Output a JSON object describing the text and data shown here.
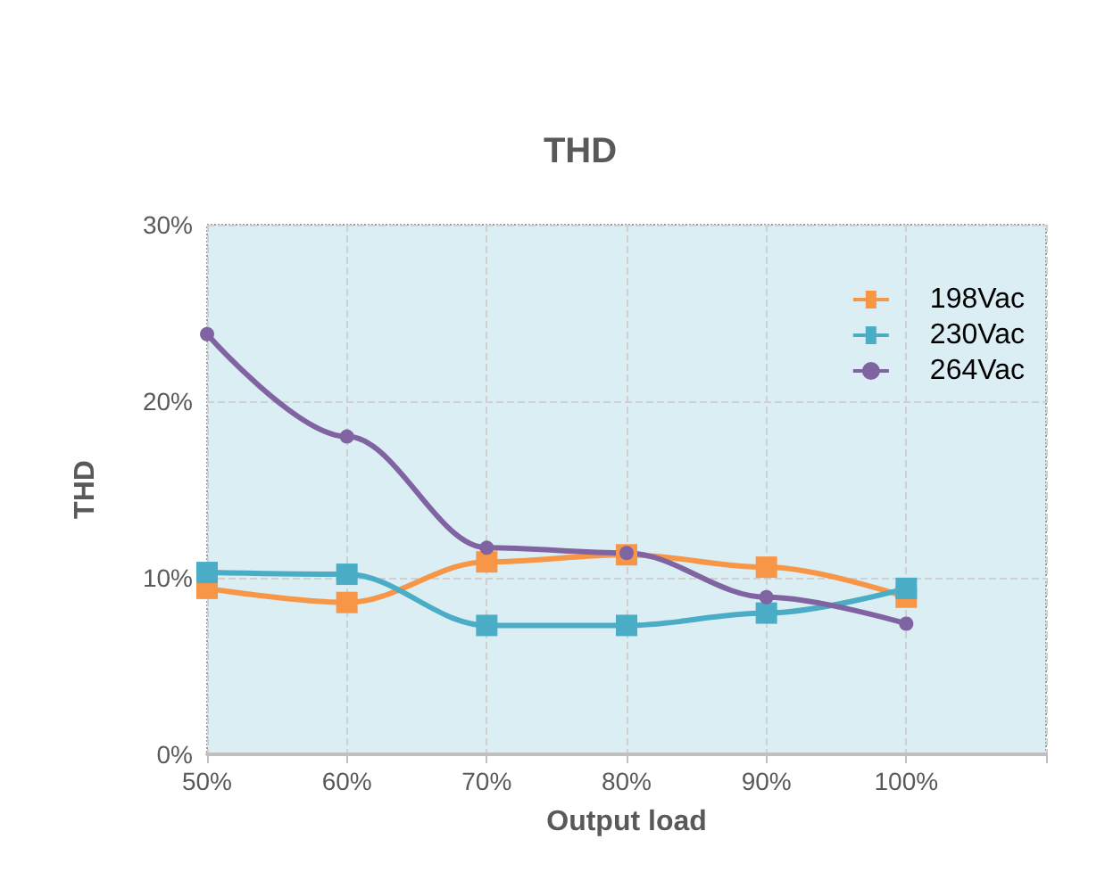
{
  "chart_data": {
    "type": "line",
    "title": "THD",
    "xlabel": "Output load",
    "ylabel": "THD",
    "x": [
      50,
      60,
      70,
      80,
      90,
      100
    ],
    "xlim": [
      50,
      110
    ],
    "xticks": [
      {
        "value": 50,
        "label": "50%"
      },
      {
        "value": 60,
        "label": "60%"
      },
      {
        "value": 70,
        "label": "70%"
      },
      {
        "value": 80,
        "label": "80%"
      },
      {
        "value": 90,
        "label": "90%"
      },
      {
        "value": 100,
        "label": "100%"
      },
      {
        "value": 110,
        "label": null
      }
    ],
    "ylim": [
      0,
      30
    ],
    "yticks": [
      {
        "value": 0,
        "label": "0%"
      },
      {
        "value": 10,
        "label": "10%"
      },
      {
        "value": 20,
        "label": "20%"
      },
      {
        "value": 30,
        "label": "30%"
      }
    ],
    "series": [
      {
        "name": "198Vac",
        "color": "#f79646",
        "marker": "square",
        "values": [
          9.4,
          8.6,
          10.9,
          11.3,
          10.6,
          8.9
        ]
      },
      {
        "name": "230Vac",
        "color": "#4bacc6",
        "marker": "square",
        "values": [
          10.3,
          10.2,
          7.3,
          7.3,
          8.0,
          9.4
        ]
      },
      {
        "name": "264Vac",
        "color": "#8064a2",
        "marker": "circle",
        "values": [
          23.8,
          18.0,
          11.7,
          11.4,
          8.9,
          7.4
        ]
      }
    ],
    "grid": true,
    "legend": "top right",
    "line_style": "solid"
  }
}
